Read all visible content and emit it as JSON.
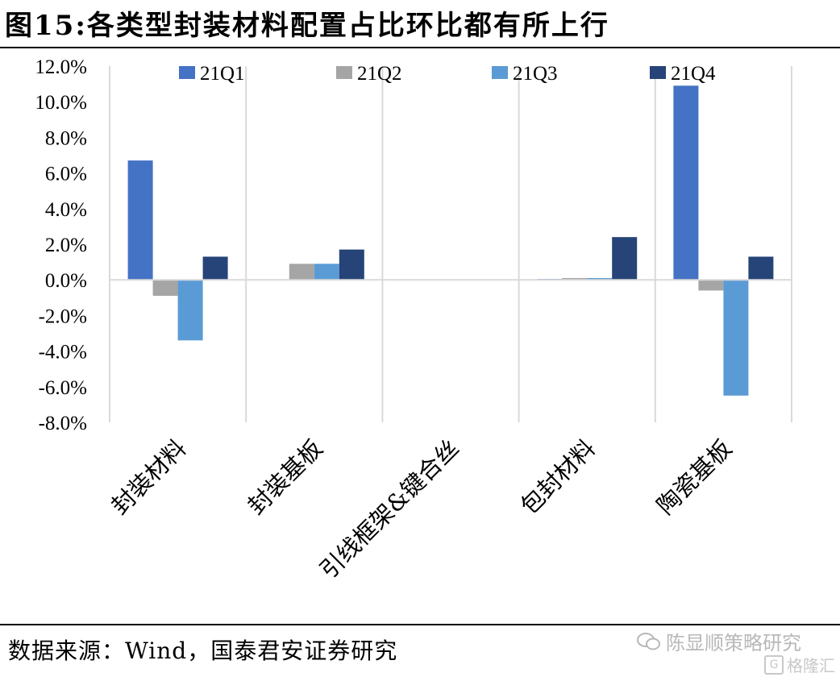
{
  "title": "图15:各类型封装材料配置占比环比都有所上行",
  "source": "数据来源：Wind，国泰君安证券研究",
  "watermark": "陈显顺策略研究",
  "corner_mark": {
    "logo_letter": "G",
    "text": "格隆汇"
  },
  "chart_data": {
    "type": "bar",
    "categories": [
      "封装材料",
      "封装基板",
      "引线框架&键合丝",
      "包封材料",
      "陶瓷基板"
    ],
    "series": [
      {
        "name": "21Q1",
        "color": "#4472C4",
        "values": [
          6.7,
          0.0,
          0.0,
          0.05,
          10.9
        ]
      },
      {
        "name": "21Q2",
        "color": "#A5A5A5",
        "values": [
          -0.9,
          0.9,
          0.0,
          0.1,
          -0.6
        ]
      },
      {
        "name": "21Q3",
        "color": "#5B9BD5",
        "values": [
          -3.4,
          0.9,
          0.0,
          0.1,
          -6.5
        ]
      },
      {
        "name": "21Q4",
        "color": "#264478",
        "values": [
          1.3,
          1.7,
          0.0,
          2.4,
          1.3
        ]
      }
    ],
    "ylim": [
      -8,
      12
    ],
    "yticks": [
      12,
      10,
      8,
      6,
      4,
      2,
      0,
      -2,
      -4,
      -6,
      -8
    ],
    "ytick_labels": [
      "12.0%",
      "10.0%",
      "8.0%",
      "6.0%",
      "4.0%",
      "2.0%",
      "0.0%",
      "-2.0%",
      "-4.0%",
      "-6.0%",
      "-8.0%"
    ],
    "grid": "vertical",
    "legend": "top",
    "xlabel": "",
    "ylabel": ""
  }
}
